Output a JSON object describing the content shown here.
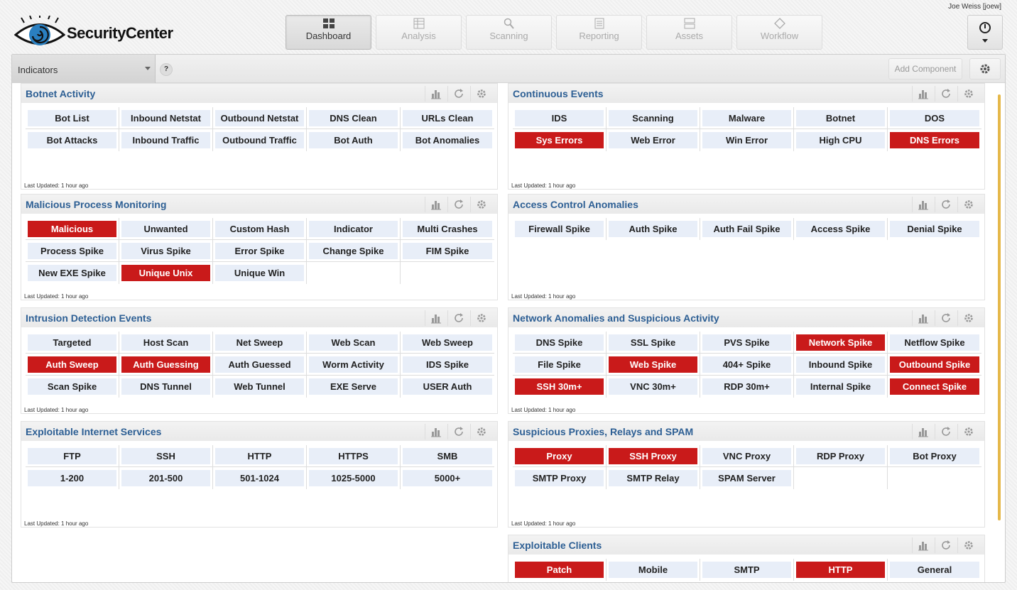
{
  "header": {
    "user": "Joe Weiss [joew]",
    "logo_text": "SecurityCenter",
    "nav": [
      {
        "label": "Dashboard",
        "name": "dashboard",
        "icon": "grid-icon",
        "active": true
      },
      {
        "label": "Analysis",
        "name": "analysis",
        "icon": "table-icon",
        "active": false
      },
      {
        "label": "Scanning",
        "name": "scanning",
        "icon": "magnifier-icon",
        "active": false
      },
      {
        "label": "Reporting",
        "name": "reporting",
        "icon": "document-icon",
        "active": false
      },
      {
        "label": "Assets",
        "name": "assets",
        "icon": "server-icon",
        "active": false
      },
      {
        "label": "Workflow",
        "name": "workflow",
        "icon": "diamond-icon",
        "active": false
      }
    ]
  },
  "toolbar": {
    "dashboard_select": "Indicators",
    "help": "?",
    "add_component": "Add Component"
  },
  "components": [
    {
      "title": "Botnet Activity",
      "updated": "Last Updated: 1 hour ago",
      "col": 0,
      "row": 0,
      "height": 150,
      "cells": [
        {
          "t": "Bot List"
        },
        {
          "t": "Inbound Netstat"
        },
        {
          "t": "Outbound Netstat"
        },
        {
          "t": "DNS Clean"
        },
        {
          "t": "URLs Clean"
        },
        {
          "t": "Bot Attacks"
        },
        {
          "t": "Inbound Traffic"
        },
        {
          "t": "Outbound Traffic"
        },
        {
          "t": "Bot Auth"
        },
        {
          "t": "Bot Anomalies"
        }
      ]
    },
    {
      "title": "Continuous Events",
      "updated": "Last Updated: 1 hour ago",
      "col": 1,
      "row": 0,
      "height": 150,
      "cells": [
        {
          "t": "IDS"
        },
        {
          "t": "Scanning"
        },
        {
          "t": "Malware"
        },
        {
          "t": "Botnet"
        },
        {
          "t": "DOS"
        },
        {
          "t": "Sys Errors",
          "red": true
        },
        {
          "t": "Web Error"
        },
        {
          "t": "Win Error"
        },
        {
          "t": "High CPU"
        },
        {
          "t": "DNS Errors",
          "red": true
        }
      ]
    },
    {
      "title": "Malicious Process Monitoring",
      "updated": "Last Updated: 1 hour ago",
      "col": 0,
      "row": 1,
      "height": 150,
      "cells": [
        {
          "t": "Malicious",
          "red": true
        },
        {
          "t": "Unwanted"
        },
        {
          "t": "Custom Hash"
        },
        {
          "t": "Indicator"
        },
        {
          "t": "Multi Crashes"
        },
        {
          "t": "Process Spike"
        },
        {
          "t": "Virus Spike"
        },
        {
          "t": "Error Spike"
        },
        {
          "t": "Change Spike"
        },
        {
          "t": "FIM Spike"
        },
        {
          "t": "New EXE Spike"
        },
        {
          "t": "Unique Unix",
          "red": true
        },
        {
          "t": "Unique Win"
        },
        {
          "t": ""
        },
        {
          "t": ""
        }
      ]
    },
    {
      "title": "Access Control Anomalies",
      "updated": "Last Updated: 1 hour ago",
      "col": 1,
      "row": 1,
      "height": 150,
      "cells": [
        {
          "t": "Firewall Spike"
        },
        {
          "t": "Auth Spike"
        },
        {
          "t": "Auth Fail Spike"
        },
        {
          "t": "Access Spike"
        },
        {
          "t": "Denial Spike"
        }
      ]
    },
    {
      "title": "Intrusion Detection Events",
      "updated": "Last Updated: 1 hour ago",
      "col": 0,
      "row": 2,
      "height": 150,
      "cells": [
        {
          "t": "Targeted"
        },
        {
          "t": "Host Scan"
        },
        {
          "t": "Net Sweep"
        },
        {
          "t": "Web Scan"
        },
        {
          "t": "Web Sweep"
        },
        {
          "t": "Auth Sweep",
          "red": true
        },
        {
          "t": "Auth Guessing",
          "red": true
        },
        {
          "t": "Auth Guessed"
        },
        {
          "t": "Worm Activity"
        },
        {
          "t": "IDS Spike"
        },
        {
          "t": "Scan Spike"
        },
        {
          "t": "DNS Tunnel"
        },
        {
          "t": "Web Tunnel"
        },
        {
          "t": "EXE Serve"
        },
        {
          "t": "USER Auth"
        }
      ]
    },
    {
      "title": "Network Anomalies and Suspicious Activity",
      "updated": "Last Updated: 1 hour ago",
      "col": 1,
      "row": 2,
      "height": 150,
      "cells": [
        {
          "t": "DNS Spike"
        },
        {
          "t": "SSL Spike"
        },
        {
          "t": "PVS Spike"
        },
        {
          "t": "Network Spike",
          "red": true
        },
        {
          "t": "Netflow Spike"
        },
        {
          "t": "File Spike"
        },
        {
          "t": "Web Spike",
          "red": true
        },
        {
          "t": "404+ Spike"
        },
        {
          "t": "Inbound Spike"
        },
        {
          "t": "Outbound Spike",
          "red": true
        },
        {
          "t": "SSH 30m+",
          "red": true
        },
        {
          "t": "VNC 30m+"
        },
        {
          "t": "RDP 30m+"
        },
        {
          "t": "Internal Spike"
        },
        {
          "t": "Connect Spike",
          "red": true
        }
      ]
    },
    {
      "title": "Exploitable Internet Services",
      "updated": "Last Updated: 1 hour ago",
      "col": 0,
      "row": 3,
      "height": 150,
      "cells": [
        {
          "t": "FTP"
        },
        {
          "t": "SSH"
        },
        {
          "t": "HTTP"
        },
        {
          "t": "HTTPS"
        },
        {
          "t": "SMB"
        },
        {
          "t": "1-200"
        },
        {
          "t": "201-500"
        },
        {
          "t": "501-1024"
        },
        {
          "t": "1025-5000"
        },
        {
          "t": "5000+"
        }
      ]
    },
    {
      "title": "Suspicious Proxies, Relays and SPAM",
      "updated": "Last Updated: 1 hour ago",
      "col": 1,
      "row": 3,
      "height": 150,
      "cells": [
        {
          "t": "Proxy",
          "red": true
        },
        {
          "t": "SSH Proxy",
          "red": true
        },
        {
          "t": "VNC Proxy"
        },
        {
          "t": "RDP Proxy"
        },
        {
          "t": "Bot Proxy"
        },
        {
          "t": "SMTP Proxy"
        },
        {
          "t": "SMTP Relay"
        },
        {
          "t": "SPAM Server"
        },
        {
          "t": ""
        },
        {
          "t": ""
        }
      ]
    },
    {
      "title": "Exploitable Clients",
      "updated": "",
      "col": 1,
      "row": 4,
      "height": 80,
      "cells": [
        {
          "t": "Patch",
          "red": true
        },
        {
          "t": "Mobile"
        },
        {
          "t": "SMTP"
        },
        {
          "t": "HTTP",
          "red": true
        },
        {
          "t": "General"
        }
      ]
    }
  ]
}
